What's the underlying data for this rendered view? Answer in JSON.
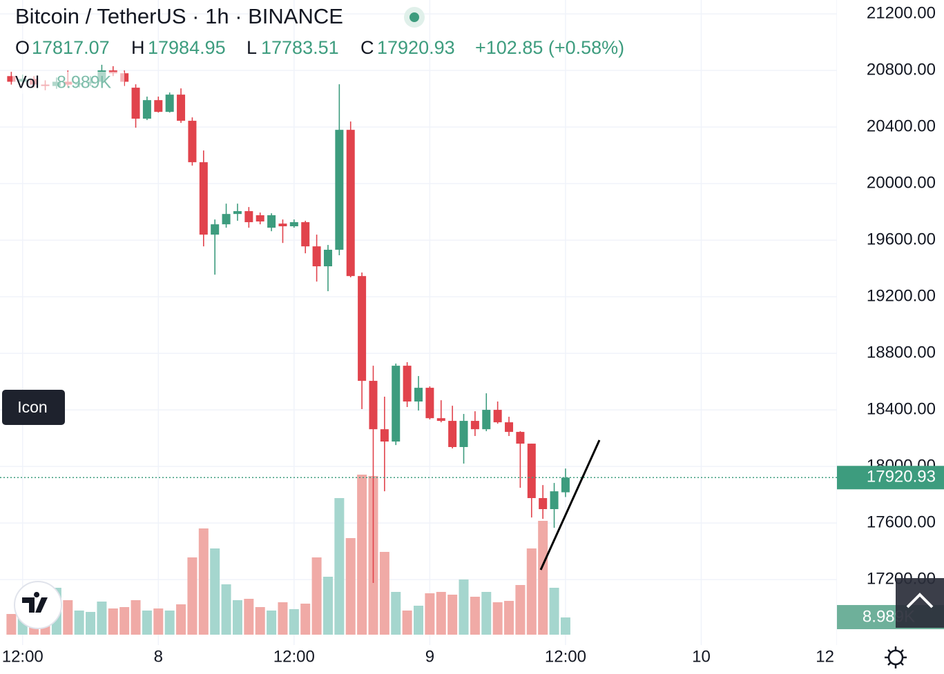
{
  "chart_data": {
    "type": "candlestick",
    "title": "Bitcoin / TetherUS · 1h · BINANCE",
    "ohlc_labels": [
      "O",
      "H",
      "L",
      "C"
    ],
    "change": "+102.85 (+0.58%)",
    "x": [
      11,
      12,
      13,
      14,
      15,
      16,
      17,
      18,
      19,
      20,
      21,
      22,
      23,
      24,
      25,
      26,
      27,
      28,
      29,
      30,
      31,
      32,
      33,
      34,
      35,
      36,
      37,
      38,
      39,
      40,
      41,
      42,
      43,
      44,
      45,
      46,
      47,
      48,
      49,
      50,
      51,
      52,
      53,
      54,
      55,
      56,
      57,
      58,
      59,
      60
    ],
    "open": [
      20760,
      20720,
      20740,
      20700,
      20690,
      20720,
      20700,
      20710,
      20720,
      20800,
      20780,
      20678,
      20459,
      20590,
      20507,
      20629,
      20444,
      20151,
      19639,
      19712,
      19785,
      19805,
      19776,
      19688,
      19717,
      19698,
      19727,
      19556,
      19415,
      19532,
      20380,
      19346,
      18605,
      18263,
      18176,
      18712,
      18459,
      18556,
      18341,
      18322,
      18137,
      18322,
      18263,
      18400,
      18312,
      18244,
      18161,
      17776,
      17698,
      17817.07
    ],
    "high": [
      20790,
      20770,
      20760,
      20730,
      20750,
      20800,
      20750,
      20760,
      20840,
      20830,
      20800,
      20702,
      20615,
      20615,
      20644,
      20673,
      20468,
      20234,
      19746,
      19858,
      19858,
      19834,
      19795,
      19790,
      19746,
      19746,
      19737,
      19639,
      19566,
      20702,
      20439,
      19371,
      18712,
      18493,
      18727,
      18737,
      18639,
      18566,
      18468,
      18429,
      18371,
      18390,
      18517,
      18459,
      18351,
      18249,
      18161,
      17868,
      17883,
      17984.95
    ],
    "low": [
      20700,
      20700,
      20680,
      20660,
      20670,
      20680,
      20680,
      20690,
      20700,
      20760,
      20690,
      20395,
      20449,
      20502,
      20502,
      20429,
      20127,
      19556,
      19356,
      19688,
      19737,
      19688,
      19712,
      19663,
      19580,
      19688,
      19507,
      19307,
      19239,
      19493,
      19337,
      18405,
      17176,
      17824,
      18151,
      18420,
      18395,
      18332,
      18312,
      18127,
      18020,
      18215,
      18249,
      18302,
      18215,
      17849,
      17639,
      17629,
      17566,
      17783.51
    ],
    "close": [
      20720,
      20740,
      20700,
      20690,
      20720,
      20700,
      20710,
      20720,
      20800,
      20780,
      20720,
      20459,
      20590,
      20507,
      20629,
      20444,
      20151,
      19639,
      19712,
      19785,
      19805,
      19727,
      19732,
      19776,
      19698,
      19727,
      19556,
      19415,
      19532,
      20380,
      19346,
      18605,
      18263,
      18176,
      18712,
      18459,
      18556,
      18341,
      18322,
      18137,
      18322,
      18263,
      18400,
      18312,
      18244,
      18161,
      17776,
      17698,
      17824,
      17920.93
    ],
    "up_color": "#3d9c7e",
    "down_color": "#e1434c",
    "volume": {
      "name": "Vol",
      "values": [
        10800,
        16200,
        19800,
        15120,
        24480,
        18000,
        12600,
        11880,
        17280,
        13680,
        14400,
        18000,
        12600,
        13680,
        12600,
        15840,
        40320,
        55440,
        45000,
        26280,
        18000,
        18720,
        14400,
        12600,
        16920,
        13320,
        16200,
        40320,
        30240,
        71280,
        50400,
        83520,
        82800,
        43200,
        22320,
        12600,
        15120,
        21600,
        22320,
        20880,
        28800,
        19800,
        22320,
        16920,
        17640,
        25920,
        45000,
        59400,
        24480,
        8989
      ],
      "value_labels": [
        null,
        null,
        null,
        null,
        null,
        null,
        null,
        null,
        null,
        null,
        null,
        null,
        null,
        null,
        null,
        null,
        null,
        null,
        null,
        null,
        null,
        null,
        null,
        null,
        null,
        null,
        null,
        null,
        null,
        null,
        null,
        null,
        null,
        null,
        null,
        null,
        null,
        null,
        null,
        null,
        null,
        null,
        null,
        null,
        null,
        null,
        null,
        null,
        null,
        "8.989K"
      ],
      "up_color": "#a5d6ce",
      "down_color": "#f0aaa6",
      "ylim": [
        0,
        90000
      ]
    },
    "xlim": [
      10,
      84
    ],
    "xticks": [
      {
        "value": 12,
        "label": "12:00"
      },
      {
        "value": 24,
        "label": "8"
      },
      {
        "value": 36,
        "label": "12:00"
      },
      {
        "value": 48,
        "label": "9"
      },
      {
        "value": 60,
        "label": "12:00"
      },
      {
        "value": 72,
        "label": "10"
      },
      {
        "value": 84,
        "label": "12"
      }
    ],
    "ylim": [
      16737,
      21298
    ],
    "yticks": [
      {
        "value": 17200,
        "label": "17200.00"
      },
      {
        "value": 17600,
        "label": "17600.00"
      },
      {
        "value": 18000,
        "label": "18000.00"
      },
      {
        "value": 18400,
        "label": "18400.00"
      },
      {
        "value": 18800,
        "label": "18800.00"
      },
      {
        "value": 19200,
        "label": "19200.00"
      },
      {
        "value": 19600,
        "label": "19600.00"
      },
      {
        "value": 20000,
        "label": "20000.00"
      },
      {
        "value": 20400,
        "label": "20400.00"
      },
      {
        "value": 20800,
        "label": "20800.00"
      },
      {
        "value": 21200,
        "label": "21200.00"
      }
    ],
    "grid": true
  },
  "tooltip": "Icon"
}
